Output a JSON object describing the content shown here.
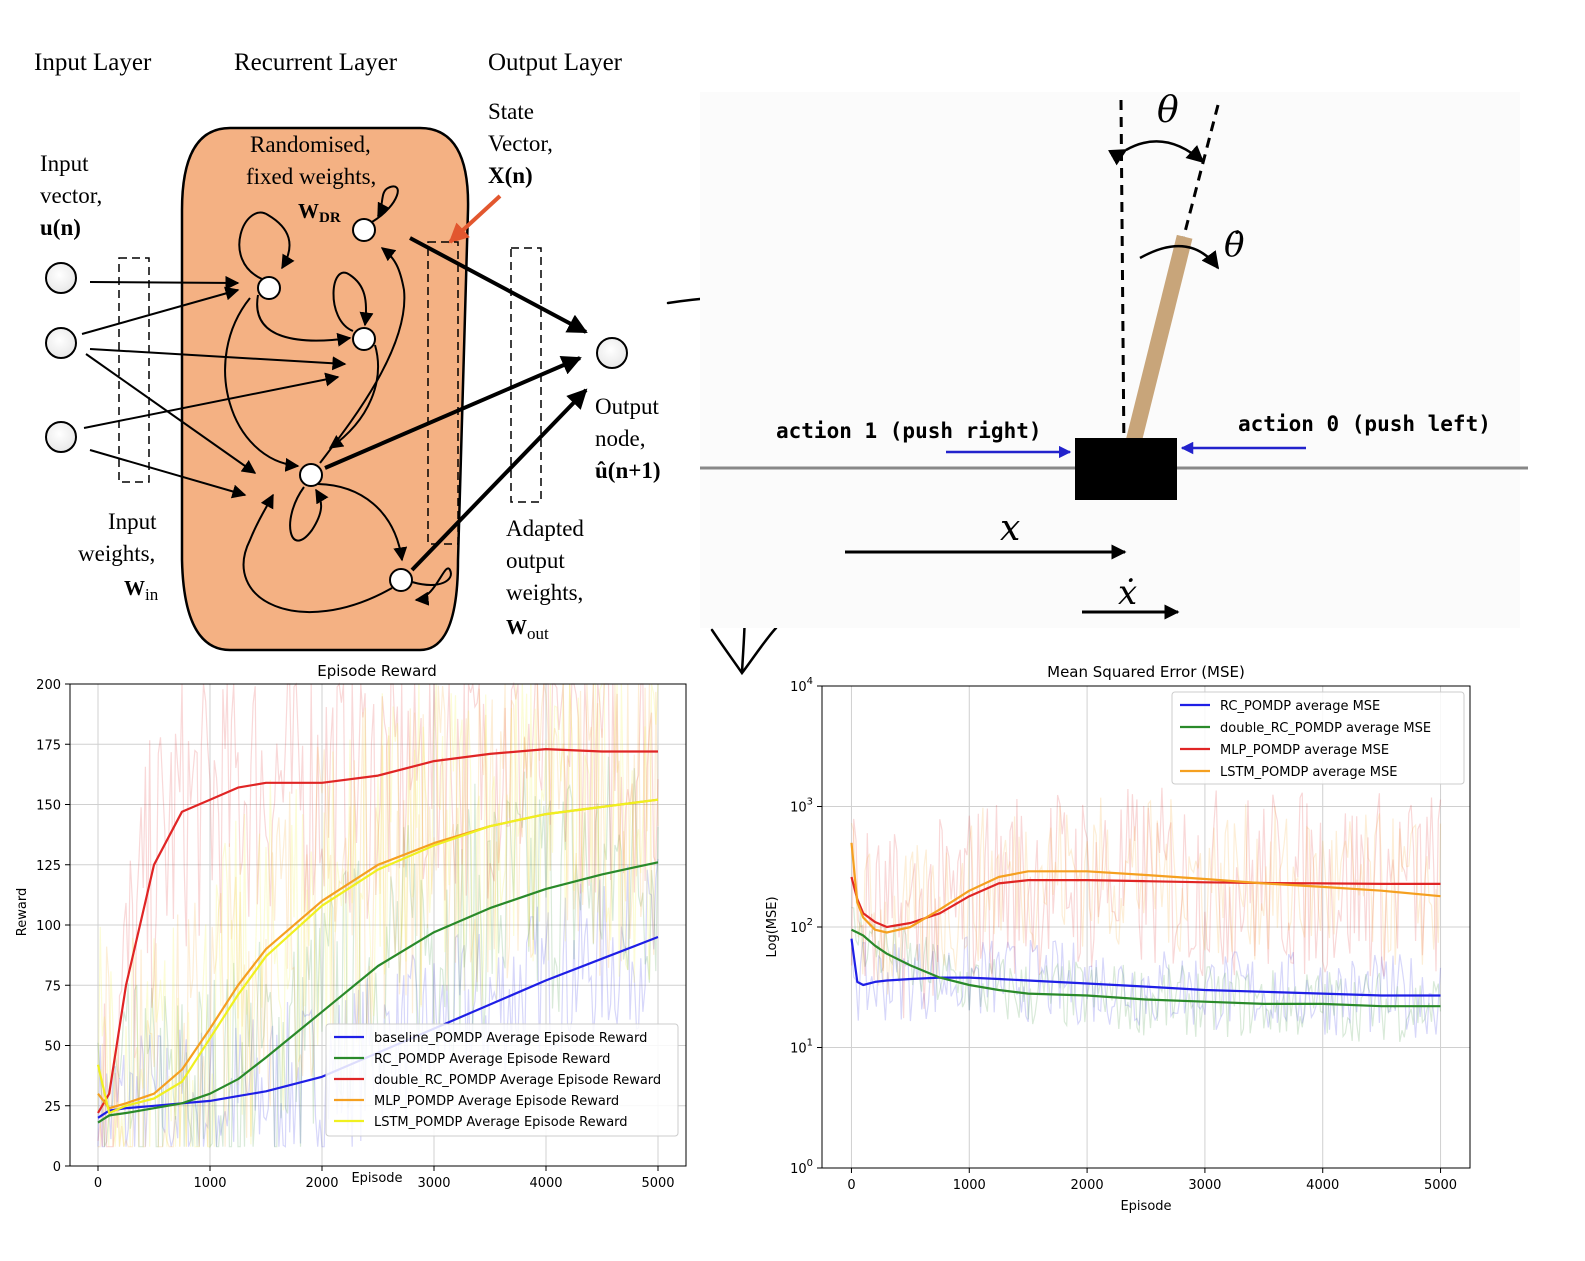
{
  "rc_diagram": {
    "headers": {
      "input_layer": "Input Layer",
      "recurrent_layer": "Recurrent Layer",
      "output_layer": "Output Layer"
    },
    "input_vector": [
      "Input",
      "vector,",
      "u(n)"
    ],
    "reservoir": [
      "Randomised,",
      "fixed weights,",
      "W",
      "DR"
    ],
    "state_vector": [
      "State",
      "Vector,",
      "X(n)"
    ],
    "input_weights": [
      "Input",
      "weights,",
      "W",
      "in"
    ],
    "output_node": [
      "Output",
      "node,",
      "û(n+1)"
    ],
    "adapted_weights": [
      "Adapted",
      "output",
      "weights,",
      "W",
      "out"
    ],
    "colors": {
      "reservoir_fill": "#f4b183",
      "pointer_arrow": "#e2572f"
    }
  },
  "cartpole": {
    "theta": "θ",
    "theta_dot": "θ̇",
    "action_right": "action 1 (push right)",
    "action_left": "action 0 (push left)",
    "x": "x",
    "x_dot": "ẋ",
    "colors": {
      "push_arrow": "#2222cc",
      "pole": "#c8a57a",
      "cart": "#000000"
    }
  },
  "reward_chart": {
    "title": "Episode Reward",
    "xlabel": "Episode",
    "ylabel": "Reward",
    "xticks": [
      "0",
      "1000",
      "2000",
      "3000",
      "4000",
      "5000"
    ],
    "yticks": [
      "0",
      "25",
      "50",
      "75",
      "100",
      "125",
      "150",
      "175",
      "200"
    ],
    "legend": [
      "baseline_POMDP Average Episode Reward",
      "RC_POMDP Average Episode Reward",
      "double_RC_POMDP Average Episode Reward",
      "MLP_POMDP Average Episode Reward",
      "LSTM_POMDP Average Episode Reward"
    ]
  },
  "mse_chart": {
    "title": "Mean Squared Error (MSE)",
    "xlabel": "Episode",
    "ylabel": "Log(MSE)",
    "xticks": [
      "0",
      "1000",
      "2000",
      "3000",
      "4000",
      "5000"
    ],
    "ytick_base": "10",
    "ytick_exps": [
      "0",
      "1",
      "2",
      "3",
      "4"
    ],
    "legend": [
      "RC_POMDP average MSE",
      "double_RC_POMDP average MSE",
      "MLP_POMDP average MSE",
      "LSTM_POMDP average MSE"
    ]
  },
  "chart_data": [
    {
      "type": "line",
      "title": "Episode Reward",
      "xlabel": "Episode",
      "ylabel": "Reward",
      "xlim": [
        -250,
        5250
      ],
      "ylim": [
        0,
        200
      ],
      "grid": true,
      "legend_position": "lower-right",
      "x": [
        0,
        100,
        250,
        500,
        750,
        1000,
        1250,
        1500,
        2000,
        2500,
        3000,
        3500,
        4000,
        4500,
        5000
      ],
      "series": [
        {
          "name": "baseline_POMDP Average Episode Reward",
          "color": "#1f1fe6",
          "values": [
            20,
            23,
            24,
            25,
            26,
            27,
            29,
            31,
            37,
            47,
            57,
            67,
            77,
            86,
            95
          ]
        },
        {
          "name": "RC_POMDP Average Episode Reward",
          "color": "#2a8a2a",
          "values": [
            18,
            21,
            22,
            24,
            26,
            30,
            36,
            45,
            64,
            83,
            97,
            107,
            115,
            121,
            126
          ]
        },
        {
          "name": "double_RC_POMDP Average Episode Reward",
          "color": "#e02525",
          "values": [
            22,
            30,
            75,
            125,
            147,
            152,
            157,
            159,
            159,
            162,
            168,
            171,
            173,
            172,
            172
          ]
        },
        {
          "name": "MLP_POMDP Average Episode Reward",
          "color": "#f5a020",
          "values": [
            30,
            24,
            26,
            30,
            40,
            57,
            75,
            90,
            110,
            125,
            134,
            141,
            146,
            149,
            152
          ]
        },
        {
          "name": "LSTM_POMDP Average Episode Reward",
          "color": "#f0f020",
          "values": [
            42,
            22,
            25,
            28,
            35,
            53,
            71,
            87,
            108,
            123,
            133,
            141,
            146,
            149,
            152
          ]
        }
      ]
    },
    {
      "type": "line",
      "title": "Mean Squared Error (MSE)",
      "xlabel": "Episode",
      "ylabel": "Log(MSE)",
      "xlim": [
        -250,
        5250
      ],
      "ylim": [
        1,
        10000
      ],
      "yscale": "log",
      "grid": true,
      "legend_position": "top-right",
      "x": [
        0,
        50,
        100,
        200,
        300,
        500,
        750,
        1000,
        1250,
        1500,
        2000,
        2500,
        3000,
        3500,
        4000,
        4500,
        5000
      ],
      "series": [
        {
          "name": "RC_POMDP average MSE",
          "color": "#1f1fe6",
          "values": [
            80,
            35,
            33,
            35,
            36,
            37,
            38,
            38,
            37,
            36,
            34,
            32,
            30,
            29,
            28,
            27,
            27
          ]
        },
        {
          "name": "double_RC_POMDP average MSE",
          "color": "#2a8a2a",
          "values": [
            95,
            90,
            85,
            70,
            60,
            48,
            38,
            33,
            30,
            28,
            27,
            25,
            24,
            23,
            23,
            22,
            22
          ]
        },
        {
          "name": "MLP_POMDP average MSE",
          "color": "#e02525",
          "values": [
            260,
            170,
            130,
            110,
            100,
            108,
            130,
            180,
            230,
            245,
            245,
            240,
            235,
            232,
            230,
            228,
            228
          ]
        },
        {
          "name": "LSTM_POMDP average MSE",
          "color": "#f5a020",
          "values": [
            500,
            160,
            120,
            95,
            90,
            100,
            140,
            200,
            260,
            290,
            290,
            270,
            250,
            230,
            215,
            200,
            180
          ]
        }
      ]
    }
  ]
}
